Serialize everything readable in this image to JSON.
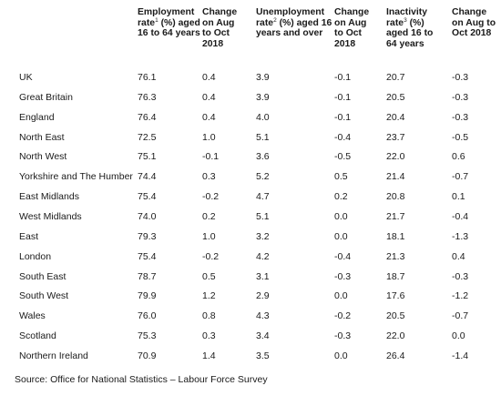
{
  "headers": {
    "employment": {
      "text": "Employment rate",
      "sup": "1",
      "text2": " (%) aged 16 to 64 years"
    },
    "emp_change": "Change on Aug to Oct 2018",
    "unemployment": {
      "text": "Unemployment rate",
      "sup": "2",
      "text2": " (%) aged 16 years and over"
    },
    "unemp_change": "Change on Aug to Oct 2018",
    "inactivity": {
      "text": "Inactivity rate",
      "sup": "3",
      "text2": " (%) aged 16 to 64 years"
    },
    "inact_change": "Change on Aug to Oct 2018"
  },
  "rows": [
    {
      "region": "UK",
      "emp": "76.1",
      "emp_chg": "0.4",
      "unemp": "3.9",
      "unemp_chg": "-0.1",
      "inact": "20.7",
      "inact_chg": "-0.3"
    },
    {
      "region": "Great Britain",
      "emp": "76.3",
      "emp_chg": "0.4",
      "unemp": "3.9",
      "unemp_chg": "-0.1",
      "inact": "20.5",
      "inact_chg": "-0.3"
    },
    {
      "region": "England",
      "emp": "76.4",
      "emp_chg": "0.4",
      "unemp": "4.0",
      "unemp_chg": "-0.1",
      "inact": "20.4",
      "inact_chg": "-0.3"
    },
    {
      "region": "North East",
      "emp": "72.5",
      "emp_chg": "1.0",
      "unemp": "5.1",
      "unemp_chg": "-0.4",
      "inact": "23.7",
      "inact_chg": "-0.5"
    },
    {
      "region": "North West",
      "emp": "75.1",
      "emp_chg": "-0.1",
      "unemp": "3.6",
      "unemp_chg": "-0.5",
      "inact": "22.0",
      "inact_chg": "0.6"
    },
    {
      "region": "Yorkshire and The Humber",
      "emp": "74.4",
      "emp_chg": "0.3",
      "unemp": "5.2",
      "unemp_chg": "0.5",
      "inact": "21.4",
      "inact_chg": "-0.7"
    },
    {
      "region": "East Midlands",
      "emp": "75.4",
      "emp_chg": "-0.2",
      "unemp": "4.7",
      "unemp_chg": "0.2",
      "inact": "20.8",
      "inact_chg": "0.1"
    },
    {
      "region": "West Midlands",
      "emp": "74.0",
      "emp_chg": "0.2",
      "unemp": "5.1",
      "unemp_chg": "0.0",
      "inact": "21.7",
      "inact_chg": "-0.4"
    },
    {
      "region": "East",
      "emp": "79.3",
      "emp_chg": "1.0",
      "unemp": "3.2",
      "unemp_chg": "0.0",
      "inact": "18.1",
      "inact_chg": "-1.3"
    },
    {
      "region": "London",
      "emp": "75.4",
      "emp_chg": "-0.2",
      "unemp": "4.2",
      "unemp_chg": "-0.4",
      "inact": "21.3",
      "inact_chg": "0.4"
    },
    {
      "region": "South East",
      "emp": "78.7",
      "emp_chg": "0.5",
      "unemp": "3.1",
      "unemp_chg": "-0.3",
      "inact": "18.7",
      "inact_chg": "-0.3"
    },
    {
      "region": "South West",
      "emp": "79.9",
      "emp_chg": "1.2",
      "unemp": "2.9",
      "unemp_chg": "0.0",
      "inact": "17.6",
      "inact_chg": "-1.2"
    },
    {
      "region": "Wales",
      "emp": "76.0",
      "emp_chg": "0.8",
      "unemp": "4.3",
      "unemp_chg": "-0.2",
      "inact": "20.5",
      "inact_chg": "-0.7"
    },
    {
      "region": "Scotland",
      "emp": "75.3",
      "emp_chg": "0.3",
      "unemp": "3.4",
      "unemp_chg": "-0.3",
      "inact": "22.0",
      "inact_chg": "0.0"
    },
    {
      "region": "Northern Ireland",
      "emp": "70.9",
      "emp_chg": "1.4",
      "unemp": "3.5",
      "unemp_chg": "0.0",
      "inact": "26.4",
      "inact_chg": "-1.4"
    }
  ],
  "source": "Source: Office for National Statistics – Labour Force Survey"
}
